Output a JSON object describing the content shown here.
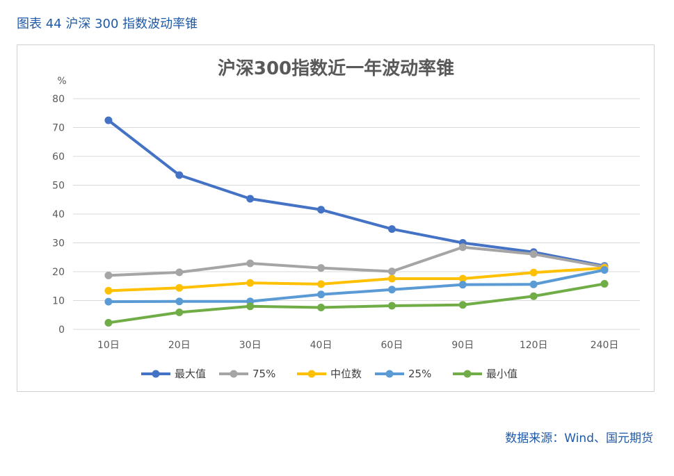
{
  "caption": "图表 44 沪深 300 指数波动率锥",
  "source": "数据来源：Wind、国元期货",
  "chart_data": {
    "type": "line",
    "title": "沪深300指数近一年波动率锥",
    "ylabel": "%",
    "xlabel": "",
    "ylim": [
      0,
      80
    ],
    "yticks": [
      "0",
      "10",
      "20",
      "30",
      "40",
      "50",
      "60",
      "70",
      "80"
    ],
    "grid": true,
    "legend_position": "bottom",
    "categories": [
      "10日",
      "20日",
      "30日",
      "40日",
      "60日",
      "90日",
      "120日",
      "240日"
    ],
    "series": [
      {
        "name": "最大值",
        "color": "#4472c4",
        "values": [
          72.5,
          53.5,
          45.3,
          41.5,
          34.8,
          30.0,
          26.8,
          22.0
        ]
      },
      {
        "name": "75%",
        "color": "#a5a5a5",
        "values": [
          18.7,
          19.8,
          22.9,
          21.3,
          20.1,
          28.5,
          26.1,
          21.7
        ]
      },
      {
        "name": "中位数",
        "color": "#ffc000",
        "values": [
          13.4,
          14.4,
          16.1,
          15.7,
          17.6,
          17.6,
          19.7,
          21.3
        ]
      },
      {
        "name": "25%",
        "color": "#5b9bd5",
        "values": [
          9.6,
          9.7,
          9.7,
          12.1,
          13.8,
          15.5,
          15.6,
          20.6
        ]
      },
      {
        "name": "最小值",
        "color": "#70ad47",
        "values": [
          2.3,
          5.9,
          8.0,
          7.6,
          8.2,
          8.5,
          11.5,
          15.8
        ]
      }
    ]
  }
}
